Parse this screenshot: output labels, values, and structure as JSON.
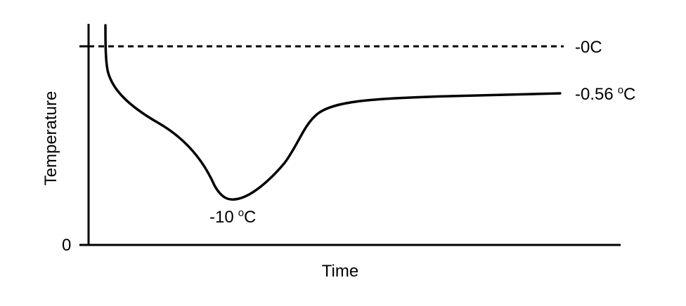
{
  "chart_data": {
    "type": "line",
    "title": "",
    "xlabel": "Time",
    "ylabel": "Temperature",
    "y_origin_label": "0",
    "reference_line": {
      "label": "-0C",
      "style": "dashed"
    },
    "annotations": {
      "minimum": {
        "value": "-10",
        "unit_degree": "o",
        "unit_letter": "C"
      },
      "plateau": {
        "value": "-0.56",
        "unit_degree": "o",
        "unit_letter": "C"
      }
    },
    "grid": false,
    "legend": "none",
    "colors": {
      "line": "#000000",
      "background": "#ffffff"
    }
  }
}
